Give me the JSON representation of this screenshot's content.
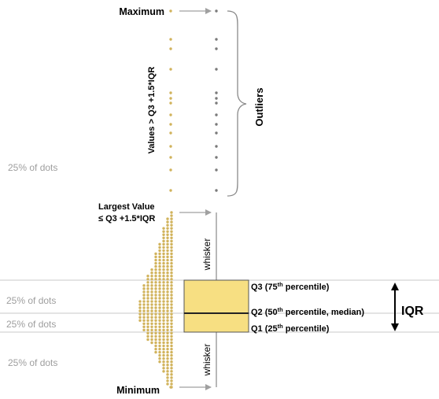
{
  "labels": {
    "maximum": "Maximum",
    "minimum": "Minimum",
    "largest_value_line1": "Largest Value",
    "largest_value_line2": "≤ Q3 +1.5*IQR",
    "values_above": "Values > Q3 +1.5*IQR",
    "outliers": "Outliers",
    "whisker_upper": "whisker",
    "whisker_lower": "whisker",
    "q3_prefix": "Q3 (75",
    "q3_sup": "th",
    "q3_suffix": " percentile)",
    "q2_prefix": "Q2 (50",
    "q2_sup": "th",
    "q2_suffix": " percentile, median)",
    "q1_prefix": "Q1 (25",
    "q1_sup": "th",
    "q1_suffix": " percentile)",
    "iqr": "IQR",
    "quarter_top": "25% of dots",
    "quarter_upper_mid": "25% of dots",
    "quarter_lower_mid": "25% of dots",
    "quarter_bottom": "25% of dots"
  },
  "colors": {
    "dot_gold": "#d1b35c",
    "dot_grey": "#7a7a7a",
    "box_fill": "#f7df82",
    "box_stroke": "#555555",
    "guide_line": "#c8c8c8",
    "arrow_grey": "#a0a0a0",
    "muted_text": "#9e9e9e"
  }
}
